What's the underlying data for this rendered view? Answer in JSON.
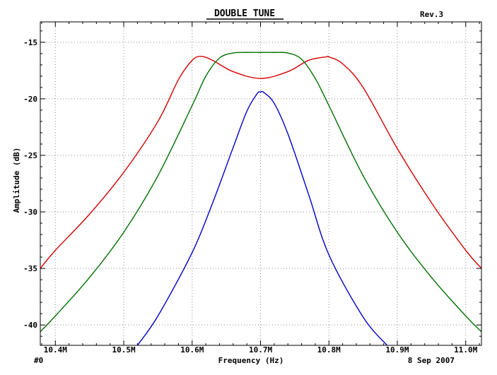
{
  "header": {
    "title": "DOUBLE TUNE",
    "revision": "Rev.3"
  },
  "footer": {
    "plot_id": "#0",
    "date": "8 Sep 2007"
  },
  "chart_data": {
    "type": "line",
    "title": "DOUBLE TUNE",
    "xlabel": "Frequency (Hz)",
    "ylabel": "Amplitude (dB)",
    "xlim": [
      10.378,
      11.023
    ],
    "ylim": [
      -41.8,
      -13.2
    ],
    "x_unit_suffix": "M",
    "x_ticks": [
      10.4,
      10.5,
      10.6,
      10.7,
      10.8,
      10.9,
      11.0
    ],
    "x_tick_labels": [
      "10.4M",
      "10.5M",
      "10.6M",
      "10.7M",
      "10.8M",
      "10.9M",
      "11.0M"
    ],
    "y_ticks": [
      -15,
      -20,
      -25,
      -30,
      -35,
      -40
    ],
    "y_tick_labels": [
      "-15",
      "-20",
      "-25",
      "-30",
      "-35",
      "-40"
    ],
    "grid": true,
    "grid_style": "dotted",
    "series": [
      {
        "color": "#d40000",
        "x": [
          10.378,
          10.4,
          10.45,
          10.5,
          10.55,
          10.58,
          10.6,
          10.613,
          10.63,
          10.66,
          10.7,
          10.74,
          10.77,
          10.795,
          10.8,
          10.82,
          10.85,
          10.9,
          10.95,
          11.0,
          11.023
        ],
        "values": [
          -35.0,
          -33.4,
          -30.2,
          -26.5,
          -22.0,
          -18.3,
          -16.6,
          -16.25,
          -16.6,
          -17.6,
          -18.2,
          -17.6,
          -16.6,
          -16.3,
          -16.3,
          -16.9,
          -19.0,
          -24.4,
          -29.2,
          -33.4,
          -35.0
        ]
      },
      {
        "color": "#007000",
        "x": [
          10.378,
          10.4,
          10.45,
          10.5,
          10.55,
          10.6,
          10.62,
          10.64,
          10.66,
          10.68,
          10.7,
          10.72,
          10.74,
          10.76,
          10.78,
          10.8,
          10.85,
          10.9,
          10.95,
          11.0,
          11.023
        ],
        "values": [
          -40.6,
          -39.2,
          -35.8,
          -31.8,
          -26.8,
          -20.6,
          -18.0,
          -16.4,
          -15.95,
          -15.9,
          -15.9,
          -15.9,
          -15.95,
          -16.5,
          -18.2,
          -20.6,
          -26.8,
          -31.8,
          -35.8,
          -39.2,
          -40.6
        ]
      },
      {
        "color": "#0000cc",
        "x": [
          10.52,
          10.55,
          10.6,
          10.63,
          10.66,
          10.68,
          10.695,
          10.7,
          10.705,
          10.72,
          10.74,
          10.77,
          10.8,
          10.85,
          10.885
        ],
        "values": [
          -41.8,
          -39.2,
          -33.6,
          -29.2,
          -24.3,
          -21.1,
          -19.55,
          -19.4,
          -19.45,
          -20.4,
          -23.1,
          -28.4,
          -33.8,
          -39.3,
          -41.8
        ]
      }
    ]
  }
}
